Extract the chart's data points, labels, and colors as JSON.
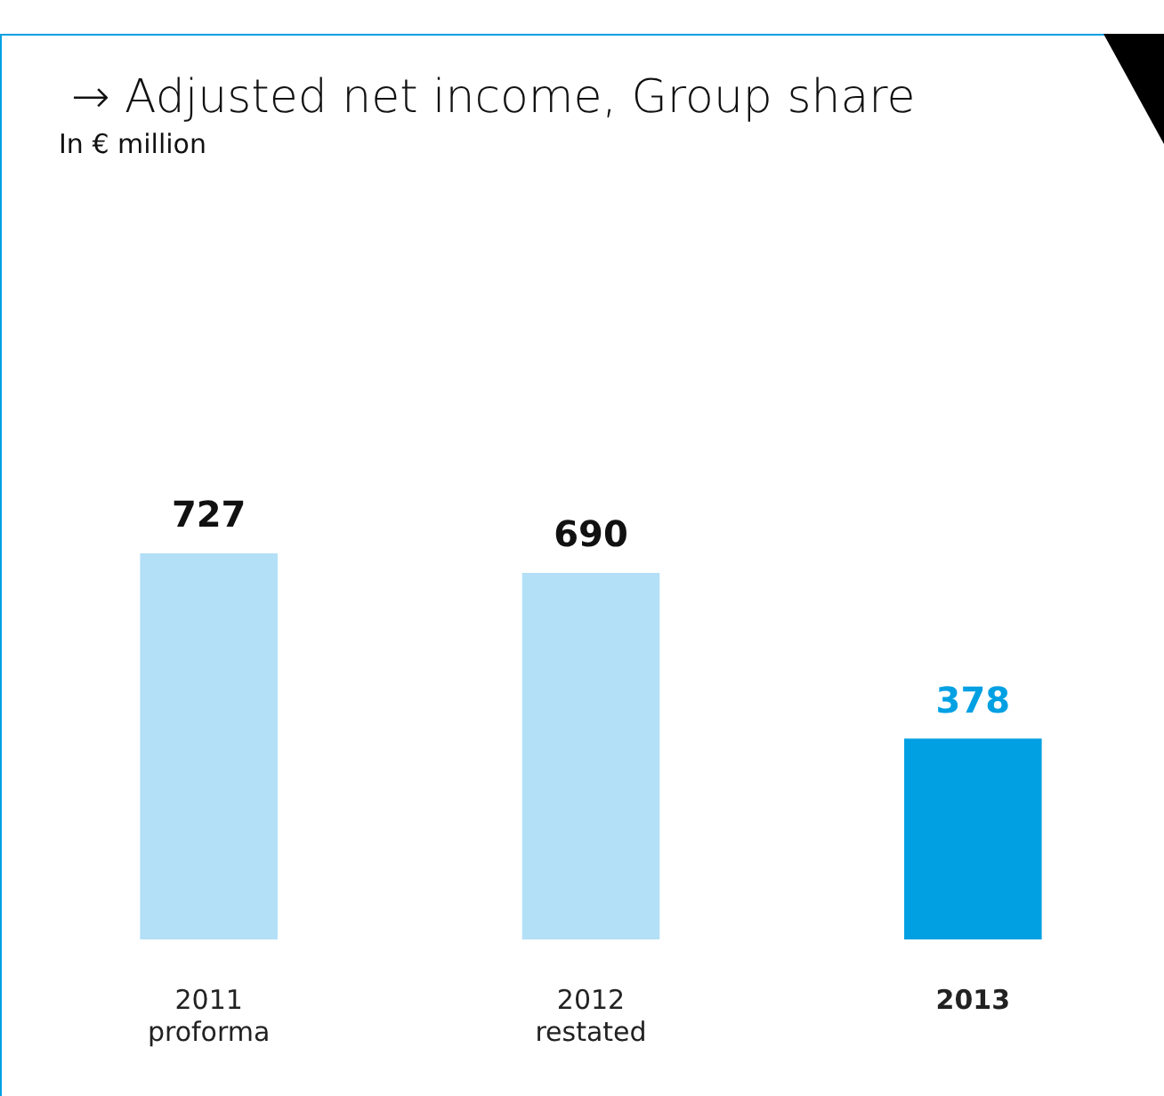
{
  "chart_data": {
    "type": "bar",
    "title": "→ Adjusted net income, Group share",
    "subtitle": "In € million",
    "categories": [
      "2011 proforma",
      "2012 restated",
      "2013"
    ],
    "values": [
      727,
      690,
      378
    ],
    "colors": [
      "#b3dff7",
      "#b3dff7",
      "#00a0e3"
    ],
    "data_labels": true,
    "grid": false,
    "legend": false
  }
}
